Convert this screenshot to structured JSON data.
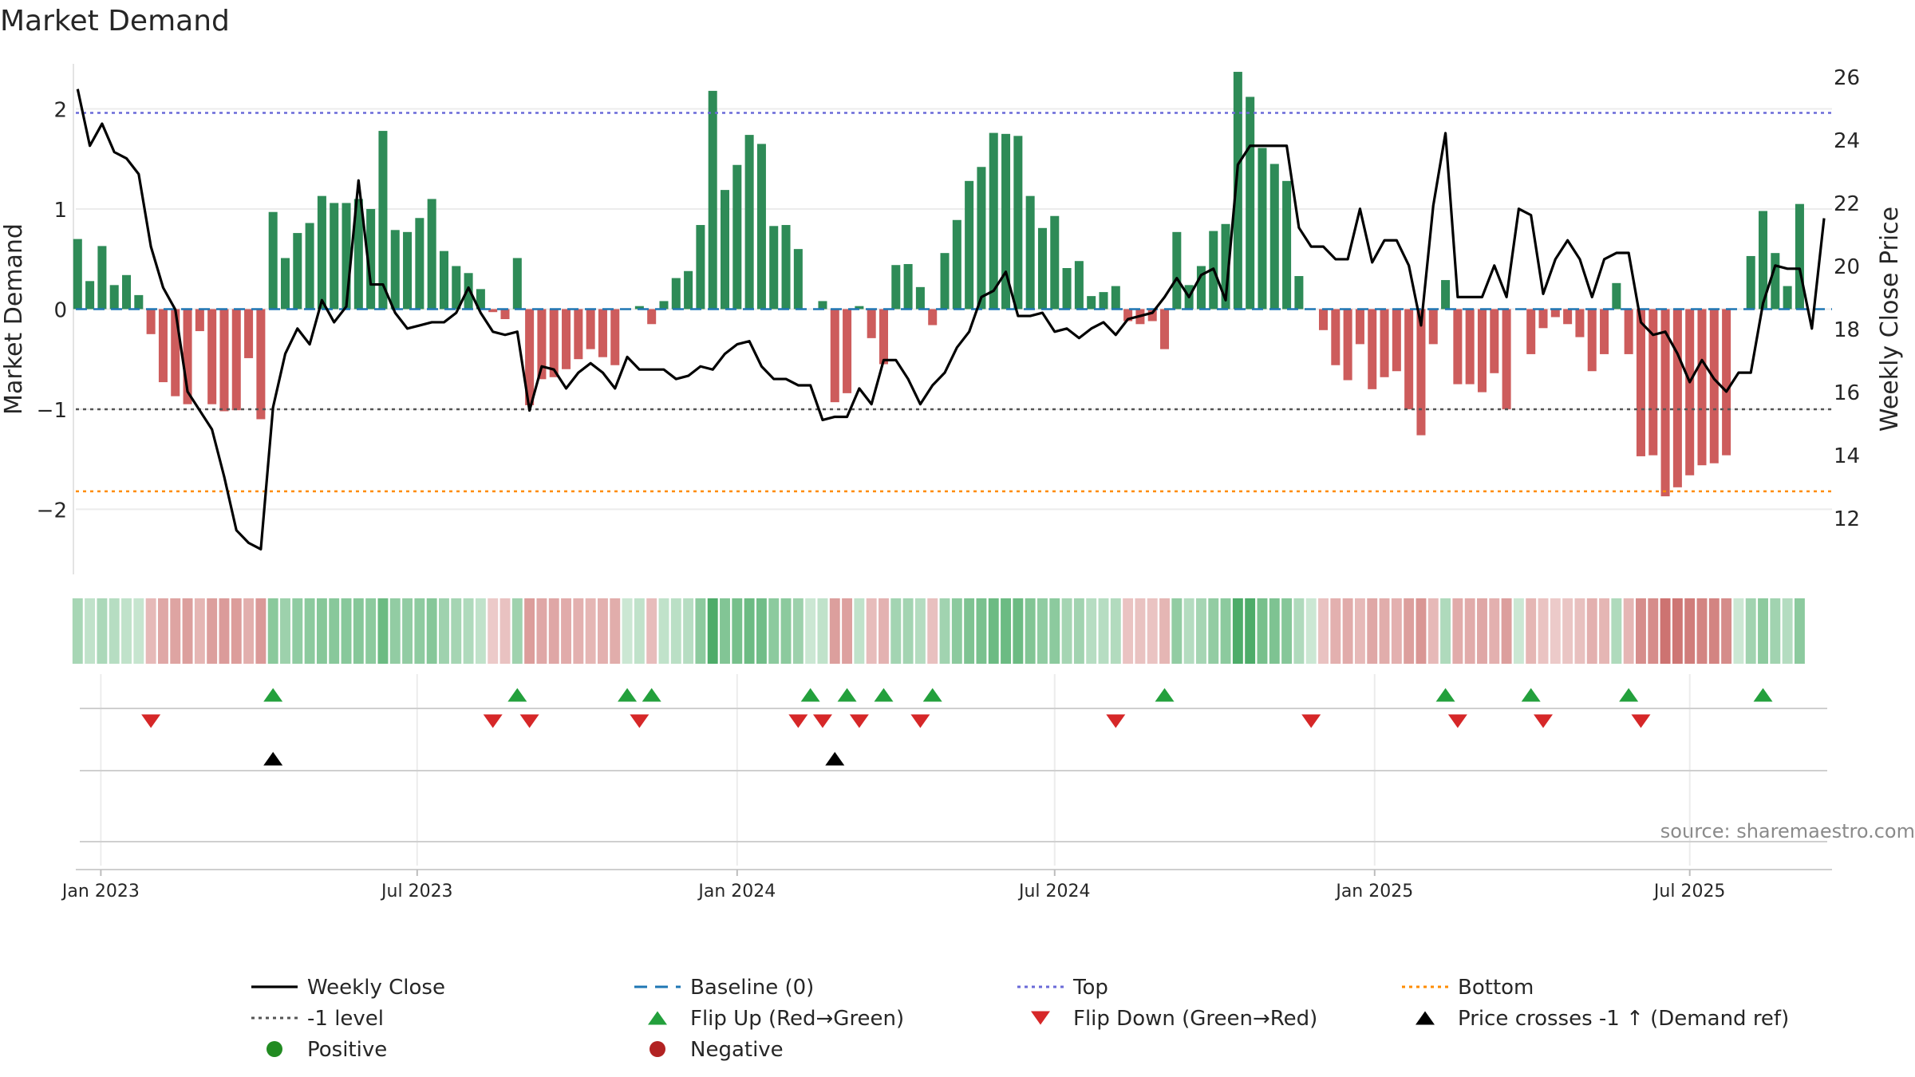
{
  "chart_data": {
    "type": "bar",
    "title": "Market Demand",
    "ylabel": "Market Demand",
    "y2label": "Weekly Close Price",
    "ylim": [
      -2.65,
      2.45
    ],
    "y2lim": [
      10.2,
      26.4
    ],
    "yticks": [
      2,
      1,
      0,
      -1,
      -2
    ],
    "ytick_labels": [
      "2",
      "1",
      "0",
      "−1",
      "−2"
    ],
    "y2ticks": [
      26,
      24,
      22,
      20,
      18,
      16,
      14,
      12
    ],
    "y2tick_labels": [
      "26",
      "24",
      "22",
      "20",
      "18",
      "16",
      "14",
      "12"
    ],
    "x_range": [
      -0.15,
      143.65
    ],
    "xticks": [
      {
        "label": "Jan 2023",
        "week": 1.9
      },
      {
        "label": "Jul 2023",
        "week": 27.8
      },
      {
        "label": "Jan 2024",
        "week": 54.0
      },
      {
        "label": "Jul 2024",
        "week": 80.0
      },
      {
        "label": "Jan 2025",
        "week": 106.2
      },
      {
        "label": "Jul 2025",
        "week": 132.0
      }
    ],
    "levels": {
      "top": 1.96,
      "bottom": -1.82,
      "minus_one": -1,
      "baseline": 0
    },
    "demand": [
      0.7,
      0.28,
      0.63,
      0.24,
      0.34,
      0.14,
      -0.25,
      -0.73,
      -0.87,
      -0.95,
      -0.22,
      -0.95,
      -1.02,
      -1.01,
      -0.49,
      -1.1,
      0.97,
      0.51,
      0.76,
      0.86,
      1.13,
      1.06,
      1.06,
      1.1,
      1.0,
      1.78,
      0.79,
      0.77,
      0.91,
      1.1,
      0.58,
      0.43,
      0.36,
      0.2,
      -0.03,
      -0.1,
      0.51,
      -0.96,
      -0.7,
      -0.68,
      -0.6,
      -0.5,
      -0.4,
      -0.48,
      -0.56,
      0.0,
      0.03,
      -0.15,
      0.08,
      0.31,
      0.38,
      0.84,
      2.18,
      1.19,
      1.44,
      1.74,
      1.65,
      0.83,
      0.84,
      0.6,
      0.0,
      0.08,
      -0.93,
      -0.84,
      0.03,
      -0.29,
      -0.55,
      0.44,
      0.45,
      0.22,
      -0.16,
      0.56,
      0.89,
      1.28,
      1.42,
      1.76,
      1.75,
      1.73,
      1.13,
      0.81,
      0.93,
      0.41,
      0.48,
      0.13,
      0.17,
      0.23,
      -0.12,
      -0.15,
      -0.12,
      -0.4,
      0.77,
      0.24,
      0.43,
      0.78,
      0.85,
      2.37,
      2.12,
      1.61,
      1.45,
      1.28,
      0.33,
      0.0,
      -0.21,
      -0.56,
      -0.71,
      -0.35,
      -0.8,
      -0.68,
      -0.62,
      -1.0,
      -1.26,
      -0.35,
      0.29,
      -0.75,
      -0.75,
      -0.83,
      -0.64,
      -1.0,
      0.0,
      -0.45,
      -0.19,
      -0.08,
      -0.15,
      -0.28,
      -0.62,
      -0.45,
      0.26,
      -0.45,
      -1.47,
      -1.46,
      -1.87,
      -1.78,
      -1.66,
      -1.56,
      -1.54,
      -1.46,
      0.0,
      0.53,
      0.98,
      0.56,
      0.23,
      1.05
    ],
    "weekly_close": [
      25.6,
      23.8,
      24.5,
      23.6,
      23.4,
      22.9,
      20.6,
      19.3,
      18.6,
      16.0,
      15.4,
      14.8,
      13.3,
      11.6,
      11.2,
      11.0,
      15.5,
      17.2,
      18.0,
      17.5,
      18.9,
      18.2,
      18.7,
      22.7,
      19.4,
      19.4,
      18.5,
      18.0,
      18.1,
      18.2,
      18.2,
      18.5,
      19.3,
      18.5,
      17.9,
      17.8,
      17.9,
      15.4,
      16.8,
      16.7,
      16.1,
      16.6,
      16.9,
      16.6,
      16.1,
      17.1,
      16.7,
      16.7,
      16.7,
      16.4,
      16.5,
      16.8,
      16.7,
      17.2,
      17.5,
      17.6,
      16.8,
      16.4,
      16.4,
      16.2,
      16.2,
      15.1,
      15.2,
      15.2,
      16.1,
      15.6,
      17.0,
      17.0,
      16.4,
      15.6,
      16.2,
      16.6,
      17.4,
      17.9,
      19.0,
      19.2,
      19.8,
      18.4,
      18.4,
      18.5,
      17.9,
      18.0,
      17.7,
      18.0,
      18.2,
      17.8,
      18.3,
      18.4,
      18.5,
      19.0,
      19.6,
      19.0,
      19.7,
      19.9,
      18.9,
      23.2,
      23.8,
      23.8,
      23.8,
      23.8,
      21.2,
      20.6,
      20.6,
      20.2,
      20.2,
      21.8,
      20.1,
      20.8,
      20.8,
      20.0,
      18.1,
      21.9,
      24.2,
      19.0,
      19.0,
      19.0,
      20.0,
      19.0,
      21.8,
      21.6,
      19.1,
      20.2,
      20.8,
      20.2,
      19.0,
      20.2,
      20.4,
      20.4,
      18.2,
      17.8,
      17.9,
      17.2,
      16.3,
      17.0,
      16.4,
      16.0,
      16.6,
      16.6,
      18.8,
      20.0,
      19.9,
      19.9,
      18.0,
      21.5
    ],
    "heat_opacity": [
      0.42,
      0.3,
      0.4,
      0.35,
      0.3,
      0.27,
      0.4,
      0.5,
      0.52,
      0.55,
      0.42,
      0.55,
      0.57,
      0.56,
      0.46,
      0.58,
      0.56,
      0.47,
      0.53,
      0.55,
      0.58,
      0.57,
      0.57,
      0.58,
      0.55,
      0.7,
      0.52,
      0.52,
      0.54,
      0.58,
      0.46,
      0.43,
      0.38,
      0.3,
      0.3,
      0.35,
      0.46,
      0.56,
      0.5,
      0.5,
      0.48,
      0.45,
      0.42,
      0.45,
      0.47,
      0.25,
      0.3,
      0.38,
      0.3,
      0.33,
      0.35,
      0.55,
      0.85,
      0.6,
      0.65,
      0.7,
      0.68,
      0.55,
      0.55,
      0.47,
      0.25,
      0.3,
      0.55,
      0.54,
      0.3,
      0.38,
      0.44,
      0.44,
      0.44,
      0.36,
      0.36,
      0.45,
      0.55,
      0.62,
      0.64,
      0.7,
      0.7,
      0.7,
      0.6,
      0.53,
      0.55,
      0.43,
      0.45,
      0.35,
      0.35,
      0.37,
      0.34,
      0.35,
      0.34,
      0.42,
      0.52,
      0.36,
      0.43,
      0.52,
      0.55,
      0.85,
      0.85,
      0.65,
      0.62,
      0.58,
      0.38,
      0.25,
      0.35,
      0.45,
      0.48,
      0.4,
      0.5,
      0.47,
      0.45,
      0.55,
      0.6,
      0.4,
      0.38,
      0.48,
      0.48,
      0.5,
      0.45,
      0.55,
      0.25,
      0.42,
      0.34,
      0.3,
      0.33,
      0.36,
      0.45,
      0.42,
      0.38,
      0.42,
      0.65,
      0.65,
      0.8,
      0.78,
      0.74,
      0.7,
      0.7,
      0.66,
      0.25,
      0.45,
      0.55,
      0.45,
      0.36,
      0.55
    ],
    "flip_up_weeks": [
      16,
      36,
      45,
      47,
      60,
      63,
      66,
      70,
      89,
      112,
      119,
      127,
      138
    ],
    "flip_down_weeks": [
      6,
      34,
      37,
      46,
      59,
      61,
      64,
      69,
      85,
      101,
      113,
      120,
      128
    ],
    "price_cross_weeks": [
      16,
      62
    ],
    "colors": {
      "positive": "#2e8b57",
      "negative": "#cd5c5c",
      "heat_positive": "#2e9e4f",
      "heat_negative": "#c0504d",
      "flip_up": "#23a03c",
      "flip_down": "#d62728",
      "cross": "#000000",
      "top": "#6a6ad8",
      "bottom": "#ff8c00",
      "minus_one": "#555555",
      "baseline": "#1f77b4",
      "price": "#000000"
    },
    "source": "source: sharemaestro.com",
    "legend": [
      {
        "label": "Weekly Close",
        "marker": "line",
        "color": "#000000"
      },
      {
        "label": "Baseline (0)",
        "marker": "dash",
        "color": "#1f77b4"
      },
      {
        "label": "Top",
        "marker": "dot",
        "color": "#6a6ad8"
      },
      {
        "label": "Bottom",
        "marker": "dot",
        "color": "#ff8c00"
      },
      {
        "label": "-1 level",
        "marker": "dot",
        "color": "#555555"
      },
      {
        "label": "Flip Up (Red→Green)",
        "marker": "tri-up",
        "color": "#23a03c"
      },
      {
        "label": "Flip Down (Green→Red)",
        "marker": "tri-down",
        "color": "#d62728"
      },
      {
        "label": "Price crosses -1 ↑ (Demand ref)",
        "marker": "tri-up",
        "color": "#000000"
      },
      {
        "label": "Positive",
        "marker": "circle",
        "color": "#228b22"
      },
      {
        "label": "Negative",
        "marker": "circle",
        "color": "#b22222"
      }
    ]
  }
}
